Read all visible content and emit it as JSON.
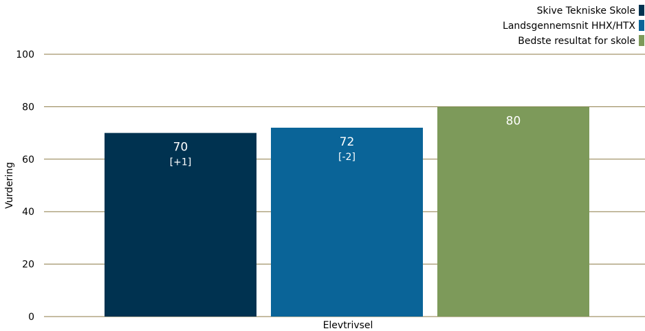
{
  "chart_data": {
    "type": "bar",
    "categories": [
      "Elevtrivsel"
    ],
    "series": [
      {
        "name": "Skive Tekniske Skole",
        "values": [
          70
        ],
        "annotation": "[+1]",
        "color": "#003250"
      },
      {
        "name": "Landsgennemsnit HHX/HTX",
        "values": [
          72
        ],
        "annotation": "[-2]",
        "color": "#0a6498"
      },
      {
        "name": "Bedste resultat for skole",
        "values": [
          80
        ],
        "annotation": "",
        "color": "#7d9a5a"
      }
    ],
    "ylabel": "Vurdering",
    "xlabel": "",
    "ylim": [
      0,
      100
    ],
    "yticks": [
      0,
      20,
      40,
      60,
      80,
      100
    ],
    "grid": true,
    "gridline_color": "#8c7a45",
    "legend_position": "top-right"
  }
}
